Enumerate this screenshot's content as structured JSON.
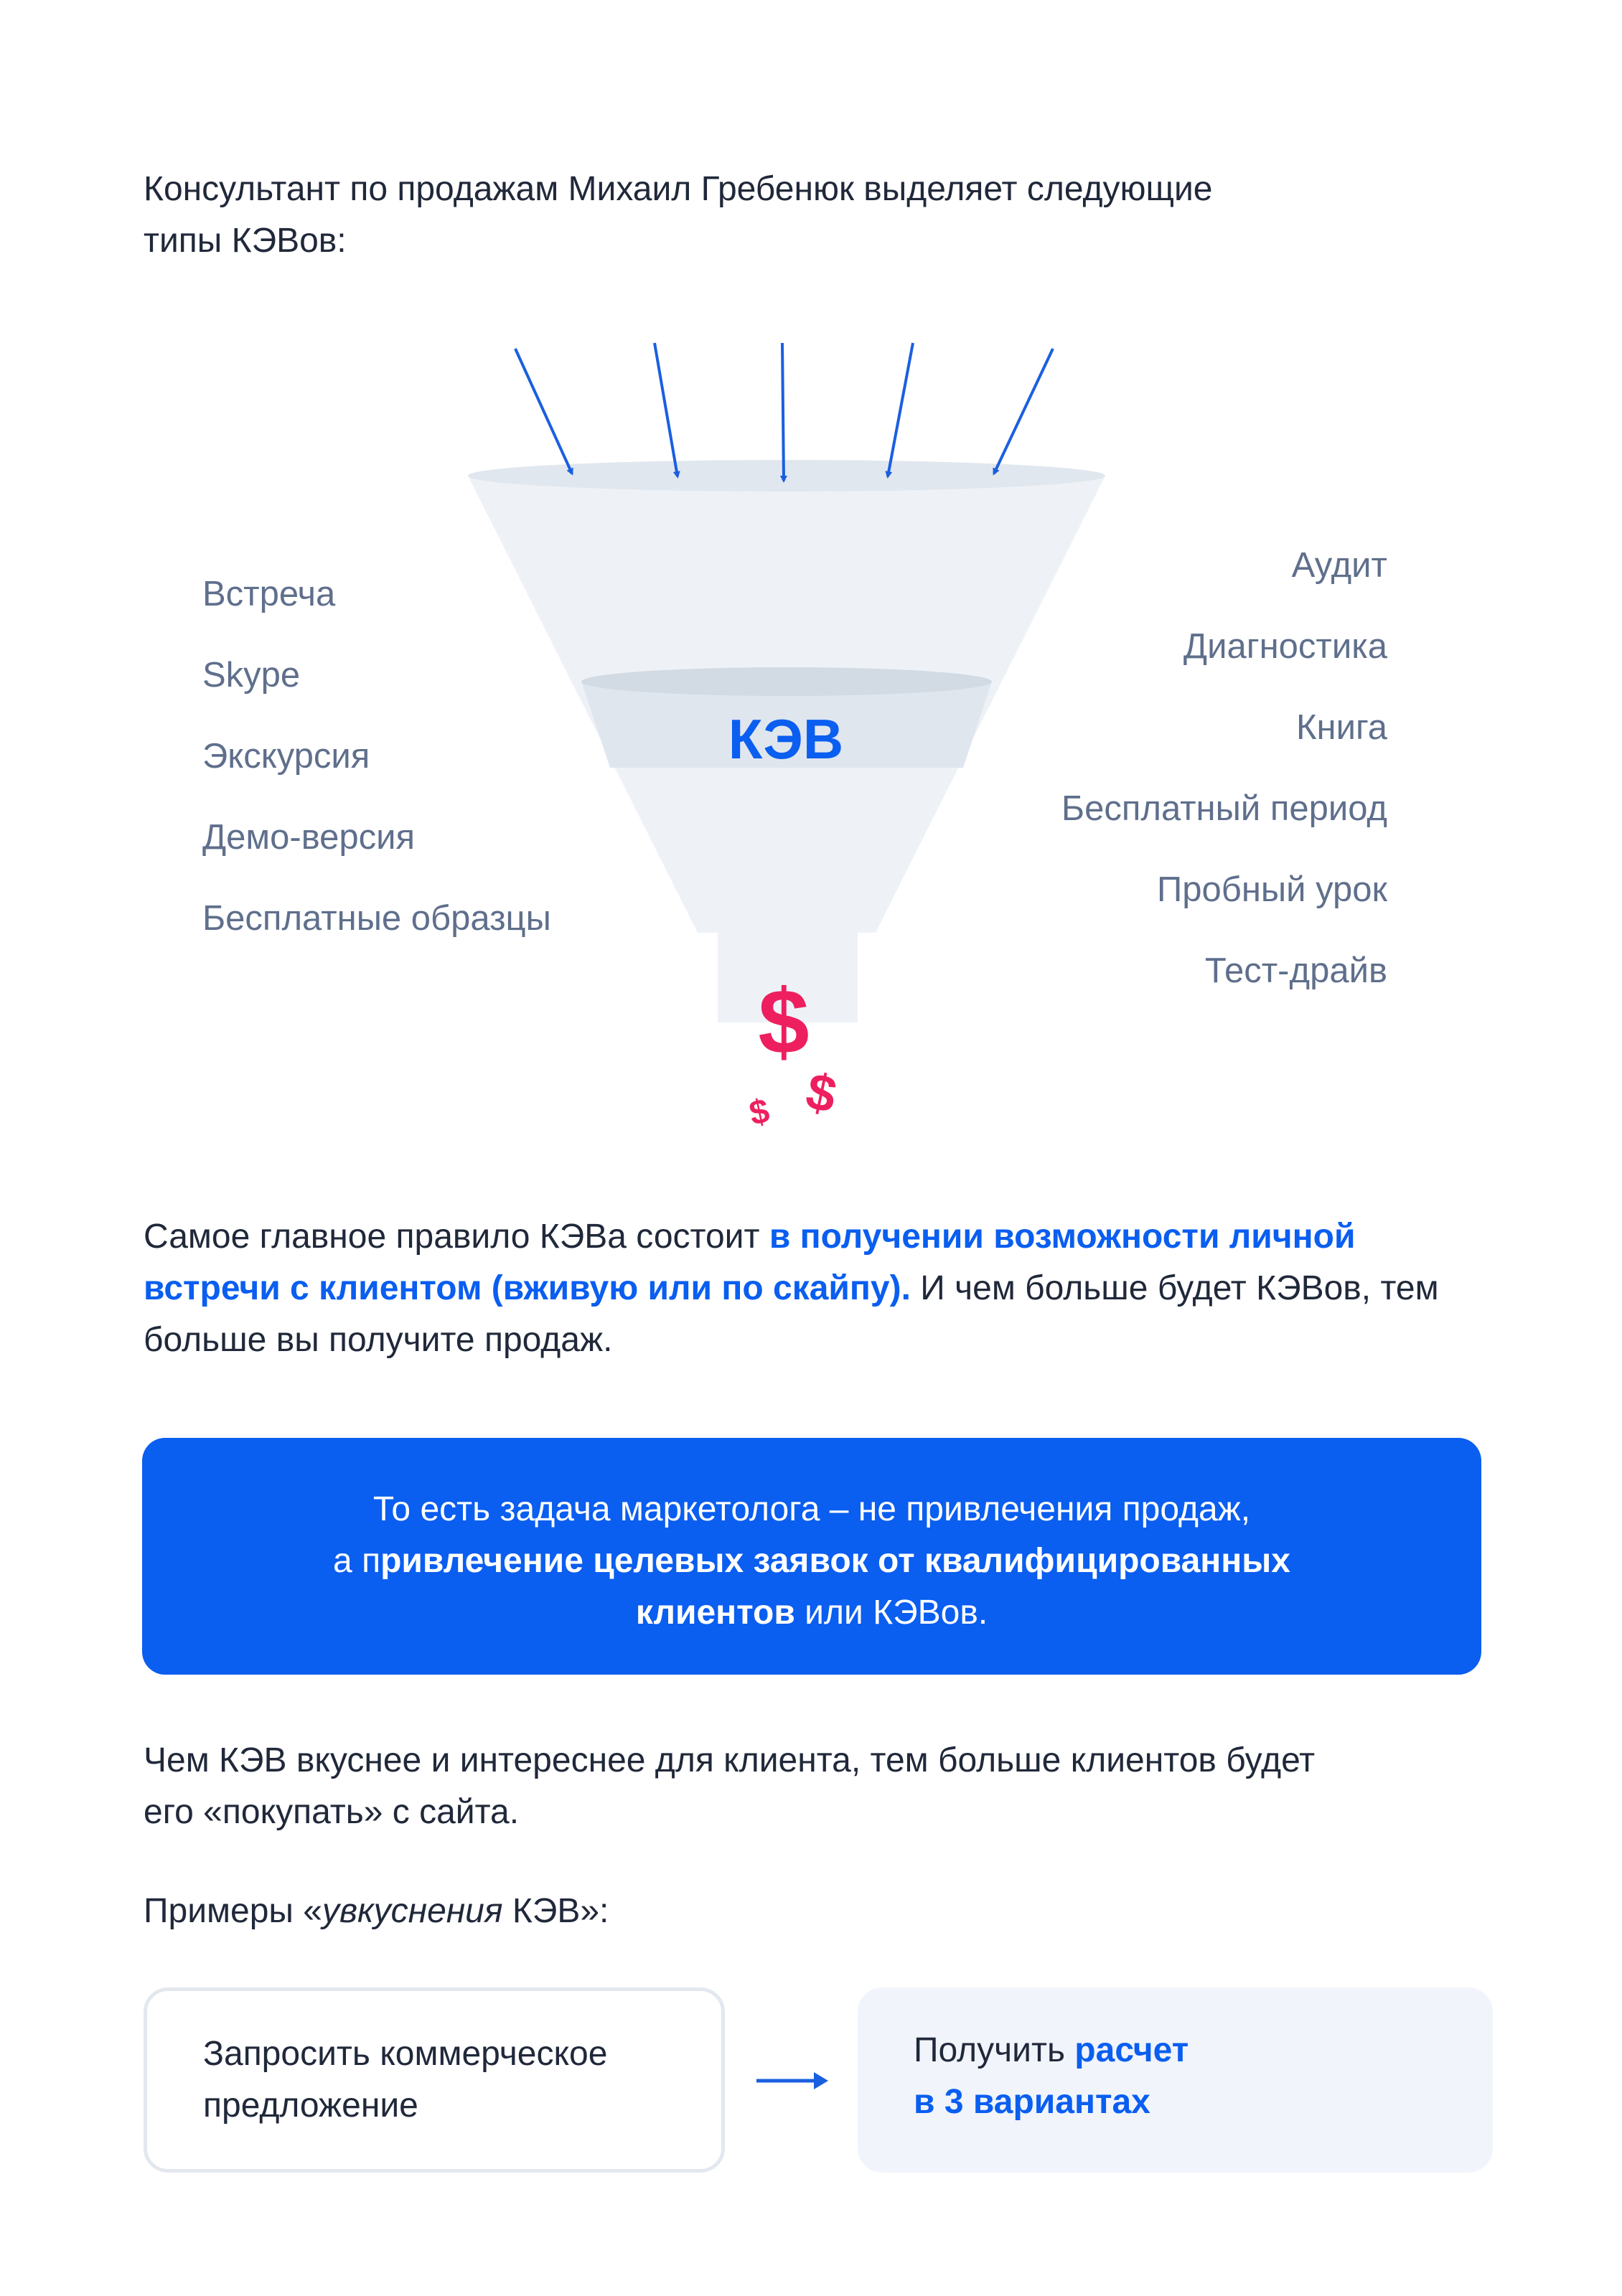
{
  "intro": {
    "line1": "Консультант по продажам Михаил Гребенюк выделяет следующие",
    "line2": "типы КЭВов:"
  },
  "funnel": {
    "center_label": "КЭВ",
    "left_items": [
      "Встреча",
      "Skype",
      "Экскурсия",
      "Демо-версия",
      "Бесплатные образцы"
    ],
    "right_items": [
      "Аудит",
      "Диагностика",
      "Книга",
      "Бесплатный период",
      "Пробный урок",
      "Тест-драйв"
    ],
    "icons": [
      "arrow-icon",
      "dollar-icon"
    ],
    "colors": {
      "arrow": "#1a5fe0",
      "funnel": "#eef2f7",
      "dollar": "#ee1f5f"
    }
  },
  "rule": {
    "text_before": "Самое главное правило КЭВа состоит ",
    "highlight": "в получении возможности личной встречи с клиентом (вживую или по скайпу).",
    "text_after": " И чем больше будет КЭВов, тем больше вы получите продаж."
  },
  "callout": {
    "line1": "То есть задача маркетолога – не привлечения продаж,",
    "line2_plain": "а п",
    "line2_bold": "ривлечение целевых заявок от квалифицированных",
    "line3_bold": "клиентов",
    "line3_plain": " или КЭВов.",
    "background": "#0a5ef0"
  },
  "tasty": {
    "line1": "Чем КЭВ вкуснее и интереснее для клиента, тем больше клиентов будет",
    "line2": "его «покупать» с сайта."
  },
  "examples": {
    "prefix": "Примеры «",
    "italic": "увкуснения",
    "suffix": " КЭВ»:"
  },
  "compare": {
    "from_line1": "Запросить коммерческое",
    "from_line2": "предложение",
    "to_plain": "Получить ",
    "to_bold1": "расчет",
    "to_bold2": "в 3 вариантах"
  }
}
